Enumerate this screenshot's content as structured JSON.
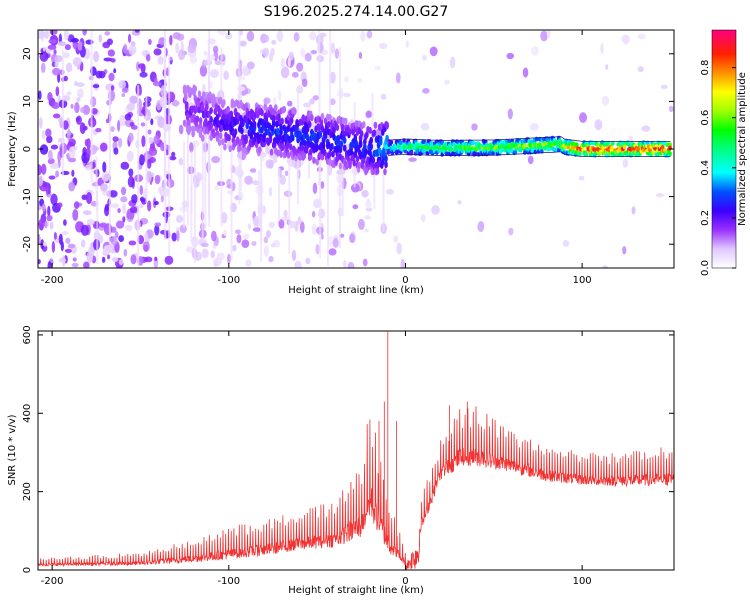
{
  "title": "S196.2025.274.14.00.G27",
  "colors": {
    "axes": "#000000",
    "snr_line": "#f03232",
    "background": "#ffffff"
  },
  "chart_data": [
    {
      "type": "heatmap",
      "name": "spectrogram",
      "xlabel": "Height of straight line (km)",
      "ylabel": "Frequency (Hz)",
      "xlim": [
        -208,
        152
      ],
      "ylim": [
        -25,
        25
      ],
      "xticks": [
        -200,
        -100,
        0,
        100
      ],
      "xtick_labels": [
        "-200",
        "-100",
        "0",
        "100"
      ],
      "yticks": [
        -20,
        -10,
        0,
        10,
        20
      ],
      "ytick_labels": [
        "-20",
        "-10",
        "0",
        "10",
        "20"
      ],
      "colorbar": {
        "label": "Normalized spectral amplitude",
        "range": [
          0,
          0.95
        ],
        "ticks": [
          0.0,
          0.2,
          0.4,
          0.6,
          0.8
        ],
        "tick_labels": [
          "0.0",
          "0.2",
          "0.4",
          "0.6",
          "0.8"
        ]
      },
      "ridge": {
        "description": "dominant frequency ridge",
        "x": [
          -120,
          -100,
          -80,
          -60,
          -40,
          -20,
          0,
          20,
          50,
          88,
          90,
          100,
          150
        ],
        "freq": [
          8,
          5,
          4,
          3,
          1.5,
          0,
          0.5,
          0.2,
          0.3,
          1.0,
          0.5,
          0,
          0
        ],
        "amplitude": [
          0.2,
          0.25,
          0.3,
          0.3,
          0.3,
          0.3,
          0.55,
          0.6,
          0.65,
          0.7,
          0.75,
          0.95,
          0.95
        ]
      }
    },
    {
      "type": "line",
      "name": "snr",
      "xlabel": "Height of straight line (km)",
      "ylabel": "SNR (10 * v/v)",
      "xlim": [
        -208,
        152
      ],
      "ylim": [
        0,
        610
      ],
      "xticks": [
        -200,
        -100,
        0,
        100
      ],
      "xtick_labels": [
        "-200",
        "-100",
        "0",
        "100"
      ],
      "yticks": [
        0,
        200,
        400,
        600
      ],
      "ytick_labels": [
        "0",
        "200",
        "400",
        "600"
      ],
      "envelope": {
        "x": [
          -208,
          -150,
          -120,
          -100,
          -80,
          -60,
          -40,
          -25,
          -20,
          -10,
          0,
          10,
          20,
          30,
          40,
          60,
          80,
          100,
          120,
          152
        ],
        "baseline": [
          12,
          15,
          25,
          35,
          45,
          60,
          70,
          100,
          160,
          60,
          15,
          120,
          240,
          275,
          280,
          260,
          235,
          225,
          222,
          225
        ],
        "peak": [
          30,
          45,
          80,
          110,
          130,
          150,
          180,
          280,
          420,
          200,
          50,
          200,
          340,
          420,
          420,
          360,
          320,
          300,
          300,
          320
        ]
      },
      "spikes": {
        "x": [
          -10,
          -12,
          -15,
          -5,
          8,
          25,
          35
        ],
        "y": [
          608,
          430,
          380,
          380,
          60,
          420,
          430
        ]
      }
    }
  ]
}
